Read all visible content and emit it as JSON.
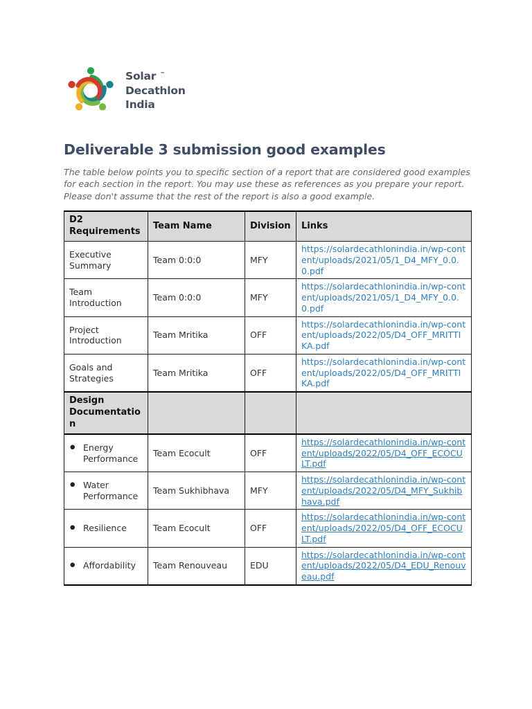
{
  "logo": {
    "brand_lines": [
      "Solar",
      "Decathlon",
      "India"
    ],
    "trademark": "™",
    "figure_colors": [
      "#29a24b",
      "#19808f",
      "#77b743",
      "#eeb12b",
      "#d23c2f"
    ],
    "text_color": "#44505f"
  },
  "heading": "Deliverable 3 submission good examples",
  "intro": "The table below points you to specific section of a report that are considered good examples for each section in the report. You may use these as references as you prepare your report. Please don't assume that the rest of the report is also a good example.",
  "ui": {
    "bullet_glyph": "●"
  },
  "colors": {
    "heading_text": "#3e4d63",
    "intro_text": "#5d6471",
    "link_blue": "#2e80c3",
    "table_header_bg": "#d9d9d9",
    "table_border": "#000000"
  },
  "table": {
    "headers": [
      "D2 Requirements",
      "Team Name",
      "Division",
      "Links"
    ],
    "rows": [
      {
        "kind": "data",
        "bullet": false,
        "requirement": "Executive Summary",
        "team": "Team 0:0:0",
        "division": "MFY",
        "link": "https://solardecathlonindia.in/wp-content/uploads/2021/05/1_D4_MFY_0.0.0.pdf",
        "link_underlined": false
      },
      {
        "kind": "data",
        "bullet": false,
        "requirement": "Team Introduction",
        "team": "Team 0:0:0",
        "division": "MFY",
        "link": "https://solardecathlonindia.in/wp-content/uploads/2021/05/1_D4_MFY_0.0.0.pdf",
        "link_underlined": false
      },
      {
        "kind": "data",
        "bullet": false,
        "requirement": "Project Introduction",
        "team": "Team Mritika",
        "division": "OFF",
        "link": "https://solardecathlonindia.in/wp-content/uploads/2022/05/D4_OFF_MRITTIKA.pdf",
        "link_underlined": false
      },
      {
        "kind": "data",
        "bullet": false,
        "requirement": "Goals and Strategies",
        "team": "Team Mritika",
        "division": "OFF",
        "link": "https://solardecathlonindia.in/wp-content/uploads/2022/05/D4_OFF_MRITTIKA.pdf",
        "link_underlined": false
      },
      {
        "kind": "section",
        "requirement": "Design Documentation"
      },
      {
        "kind": "data",
        "bullet": true,
        "requirement": "Energy Performance",
        "team": "Team Ecocult",
        "division": "OFF",
        "link": "https://solardecathlonindia.in/wp-content/uploads/2022/05/D4_OFF_ECOCULT.pdf",
        "link_underlined": true
      },
      {
        "kind": "data",
        "bullet": true,
        "requirement": "Water Performance",
        "team": "Team Sukhibhava",
        "division": "MFY",
        "link": "https://solardecathlonindia.in/wp-content/uploads/2022/05/D4_MFY_Sukhibhava.pdf",
        "link_underlined": true
      },
      {
        "kind": "data",
        "bullet": true,
        "requirement": "Resilience",
        "team": "Team Ecocult",
        "division": "OFF",
        "link": "https://solardecathlonindia.in/wp-content/uploads/2022/05/D4_OFF_ECOCULT.pdf",
        "link_underlined": true
      },
      {
        "kind": "data",
        "bullet": true,
        "requirement": "Affordability",
        "team": "Team Renouveau",
        "division": "EDU",
        "link": "https://solardecathlonindia.in/wp-content/uploads/2022/05/D4_EDU_Renouveau.pdf",
        "link_underlined": true
      }
    ]
  }
}
